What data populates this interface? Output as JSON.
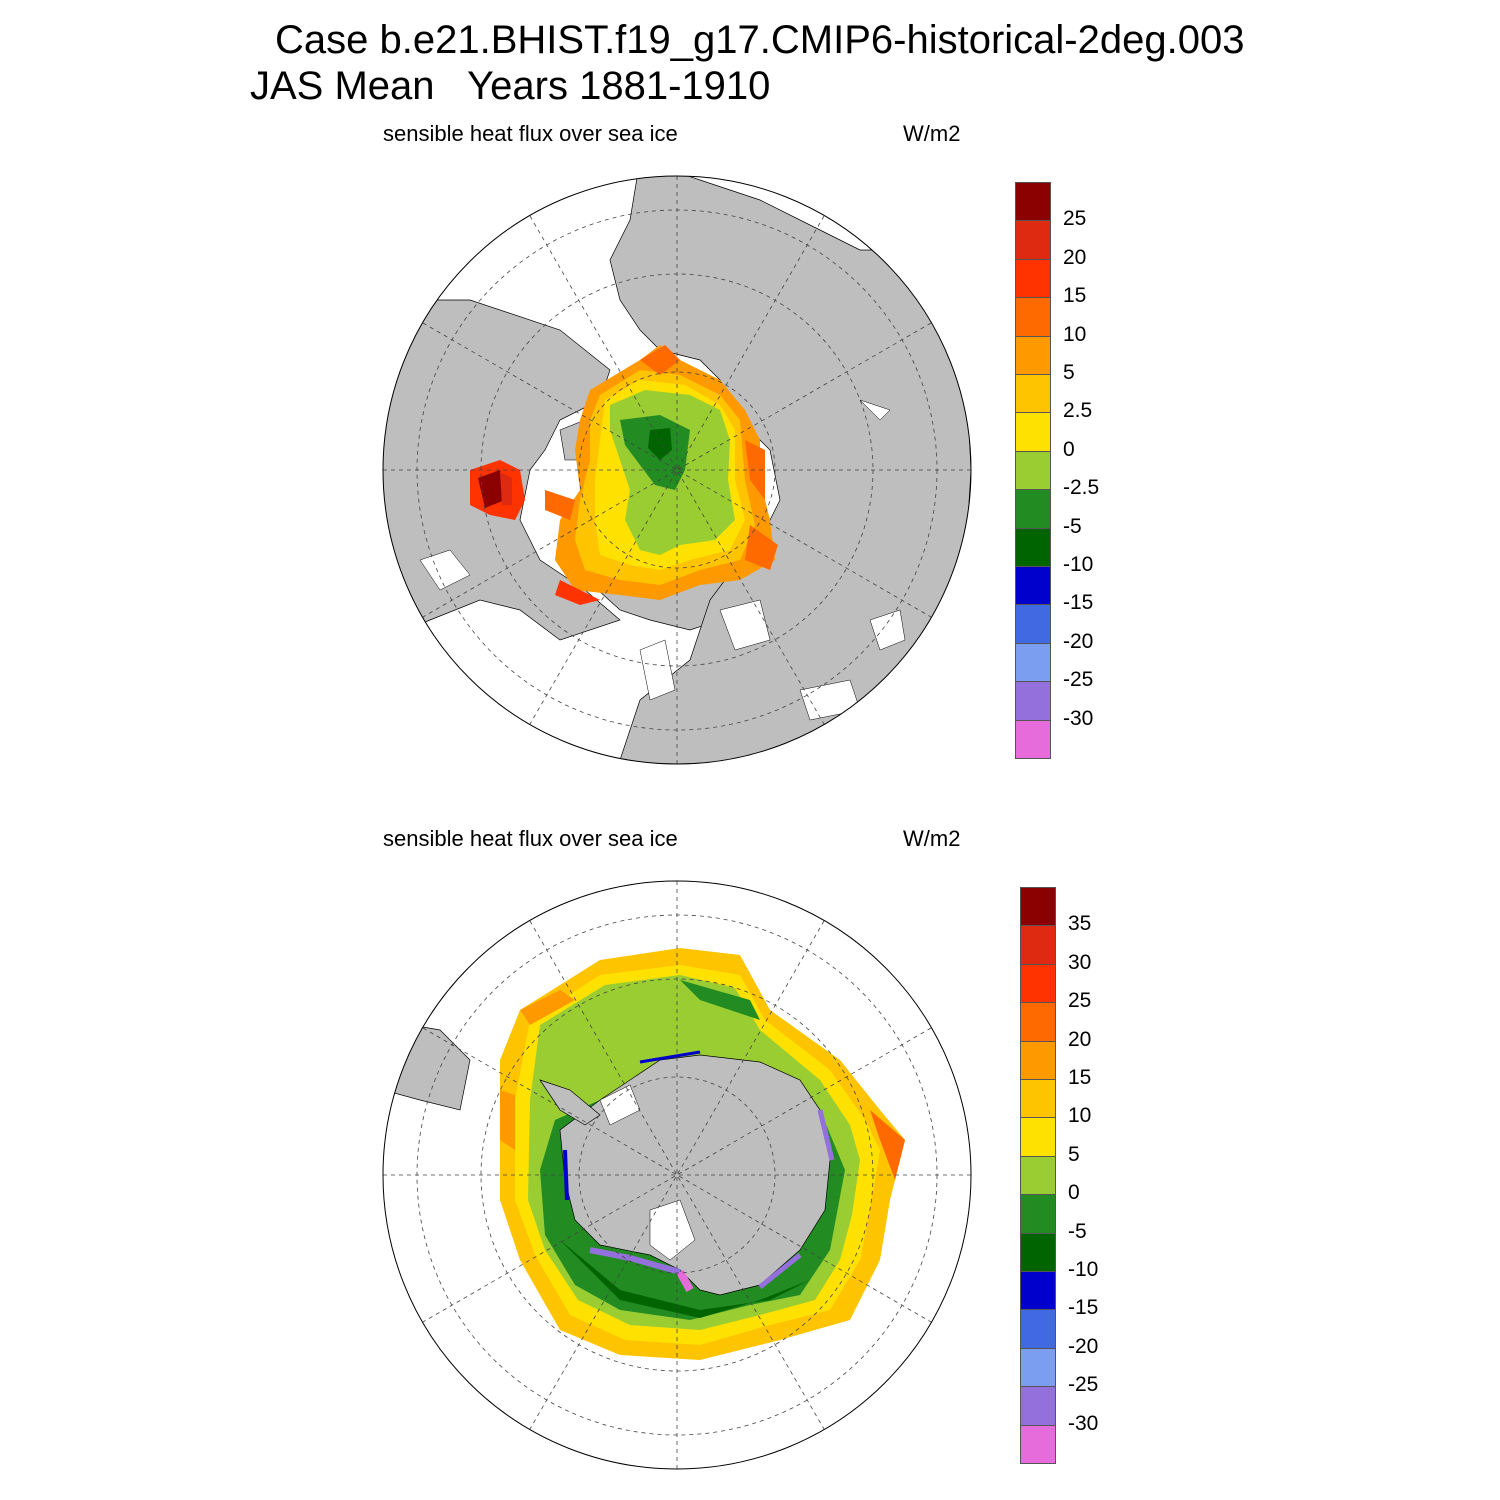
{
  "header": {
    "title_line1": "Case b.e21.BHIST.f19_g17.CMIP6-historical-2deg.003",
    "title_line2": "JAS Mean   Years 1881-1910"
  },
  "colors": {
    "land": "#bebebe",
    "ocean_no_ice": "#ffffff",
    "grid": "#444444",
    "palette": [
      "#e66cdc",
      "#9370db",
      "#7b9ef0",
      "#4169e1",
      "#0000cd",
      "#006400",
      "#228b22",
      "#9acd32",
      "#ffe100",
      "#ffc400",
      "#ff9900",
      "#ff6a00",
      "#ff3300",
      "#dd2a10",
      "#8b0000"
    ]
  },
  "panels": [
    {
      "id": "north",
      "variable_label": "sensible heat flux over sea ice",
      "units": "W/m2",
      "hemisphere": "Northern Hemisphere (polar stereographic)",
      "colorbar": {
        "labels": [
          "-30",
          "-25",
          "-20",
          "-15",
          "-10",
          "-5",
          "-2.5",
          "0",
          "2.5",
          "5",
          "10",
          "15",
          "20",
          "25"
        ]
      }
    },
    {
      "id": "south",
      "variable_label": "sensible heat flux over sea ice",
      "units": "W/m2",
      "hemisphere": "Southern Hemisphere (polar stereographic)",
      "colorbar": {
        "labels": [
          "-30",
          "-25",
          "-20",
          "-15",
          "-10",
          "-5",
          "0",
          "5",
          "10",
          "15",
          "20",
          "25",
          "30",
          "35"
        ]
      }
    }
  ]
}
